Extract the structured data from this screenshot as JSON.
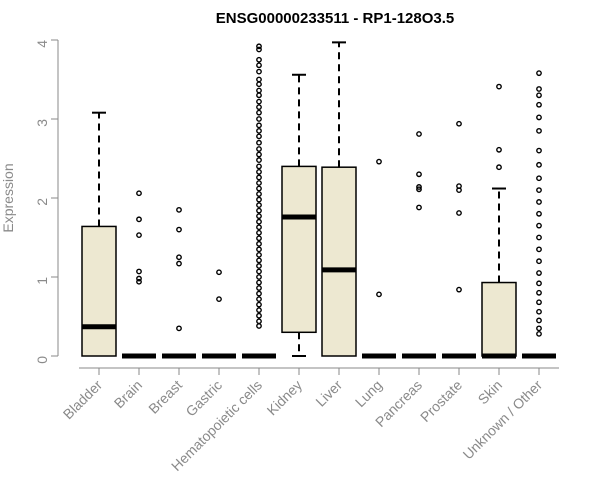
{
  "chart_data": {
    "type": "boxplot",
    "title": "ENSG00000233511 - RP1-128O3.5",
    "xlabel": "",
    "ylabel": "Expression",
    "ylim": [
      0,
      4
    ],
    "yticks": [
      0,
      1,
      2,
      3,
      4
    ],
    "grid": false,
    "box_fill": "#ede8d1",
    "categories": [
      "Bladder",
      "Brain",
      "Breast",
      "Gastric",
      "Hematopoietic cells",
      "Kidney",
      "Liver",
      "Lung",
      "Pancreas",
      "Prostate",
      "Skin",
      "Unknown / Other"
    ],
    "boxes": [
      {
        "category": "Bladder",
        "q1": 0.0,
        "median": 0.37,
        "q3": 1.64,
        "whisker_low": 0.0,
        "whisker_high": 3.08,
        "outliers": []
      },
      {
        "category": "Brain",
        "q1": 0.0,
        "median": 0.0,
        "q3": 0.0,
        "whisker_low": 0.0,
        "whisker_high": 0.0,
        "outliers": [
          2.06,
          1.73,
          1.53,
          1.07,
          0.98,
          0.94
        ]
      },
      {
        "category": "Breast",
        "q1": 0.0,
        "median": 0.0,
        "q3": 0.0,
        "whisker_low": 0.0,
        "whisker_high": 0.0,
        "outliers": [
          1.85,
          1.6,
          1.25,
          1.17,
          0.35
        ]
      },
      {
        "category": "Gastric",
        "q1": 0.0,
        "median": 0.0,
        "q3": 0.0,
        "whisker_low": 0.0,
        "whisker_high": 0.0,
        "outliers": [
          1.06,
          0.72
        ]
      },
      {
        "category": "Hematopoietic cells",
        "q1": 0.0,
        "median": 0.0,
        "q3": 0.0,
        "whisker_low": 0.0,
        "whisker_high": 0.0,
        "outliers": [
          3.92,
          3.88,
          3.75,
          3.68,
          3.6,
          3.5,
          3.44,
          3.36,
          3.3,
          3.22,
          3.15,
          3.08,
          3.0,
          2.92,
          2.85,
          2.78,
          2.7,
          2.62,
          2.55,
          2.48,
          2.4,
          2.33,
          2.26,
          2.19,
          2.12,
          2.05,
          1.98,
          1.91,
          1.84,
          1.77,
          1.7,
          1.63,
          1.56,
          1.49,
          1.42,
          1.35,
          1.28,
          1.21,
          1.14,
          1.07,
          1.0,
          0.93,
          0.86,
          0.79,
          0.72,
          0.65,
          0.58,
          0.51,
          0.44,
          0.38
        ]
      },
      {
        "category": "Kidney",
        "q1": 0.3,
        "median": 1.76,
        "q3": 2.4,
        "whisker_low": 0.0,
        "whisker_high": 3.56,
        "outliers": []
      },
      {
        "category": "Liver",
        "q1": 0.0,
        "median": 1.09,
        "q3": 2.39,
        "whisker_low": 0.0,
        "whisker_high": 3.97,
        "outliers": []
      },
      {
        "category": "Lung",
        "q1": 0.0,
        "median": 0.0,
        "q3": 0.0,
        "whisker_low": 0.0,
        "whisker_high": 0.0,
        "outliers": [
          2.46,
          0.78
        ]
      },
      {
        "category": "Pancreas",
        "q1": 0.0,
        "median": 0.0,
        "q3": 0.0,
        "whisker_low": 0.0,
        "whisker_high": 0.0,
        "outliers": [
          2.81,
          2.3,
          2.14,
          2.11,
          1.88
        ]
      },
      {
        "category": "Prostate",
        "q1": 0.0,
        "median": 0.0,
        "q3": 0.0,
        "whisker_low": 0.0,
        "whisker_high": 0.0,
        "outliers": [
          2.94,
          2.15,
          2.1,
          1.81,
          0.84
        ]
      },
      {
        "category": "Skin",
        "q1": 0.0,
        "median": 0.0,
        "q3": 0.93,
        "whisker_low": 0.0,
        "whisker_high": 2.12,
        "outliers": [
          3.41,
          2.61,
          2.39
        ]
      },
      {
        "category": "Unknown / Other",
        "q1": 0.0,
        "median": 0.0,
        "q3": 0.0,
        "whisker_low": 0.0,
        "whisker_high": 0.0,
        "outliers": [
          3.58,
          3.38,
          3.3,
          3.18,
          3.02,
          2.85,
          2.6,
          2.42,
          2.25,
          2.1,
          1.95,
          1.8,
          1.65,
          1.5,
          1.35,
          1.2,
          1.05,
          0.92,
          0.8,
          0.68,
          0.56,
          0.45,
          0.35,
          0.28
        ]
      }
    ]
  }
}
